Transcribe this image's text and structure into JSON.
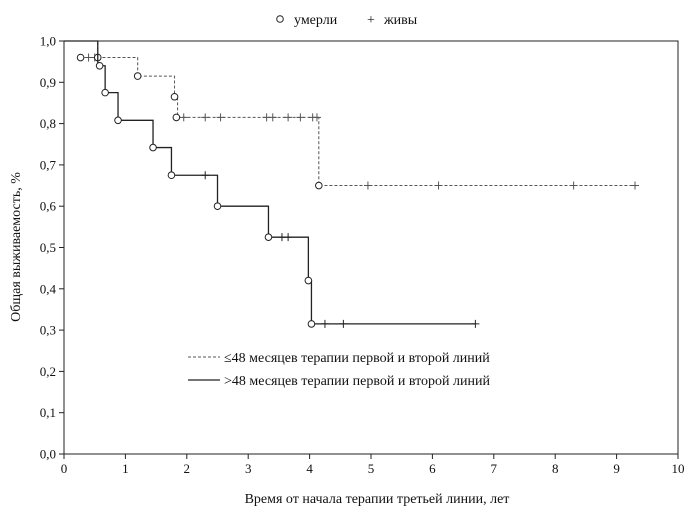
{
  "chart_data": {
    "type": "line",
    "xlabel": "Время от начала терапии третьей линии, лет",
    "ylabel": "Общая выживаемость, %",
    "xlim": [
      0,
      10
    ],
    "ylim": [
      0,
      1
    ],
    "x_ticks": [
      "0",
      "1",
      "2",
      "3",
      "4",
      "5",
      "6",
      "7",
      "8",
      "9",
      "10"
    ],
    "y_ticks": [
      "0,0",
      "0,1",
      "0,2",
      "0,3",
      "0,4",
      "0,5",
      "0,6",
      "0,7",
      "0,8",
      "0,9",
      "1,0"
    ],
    "grid": false,
    "marker_legend": {
      "died_label": "умерли",
      "alive_label": "живы",
      "died_symbol": "○",
      "alive_symbol": "+"
    },
    "series": [
      {
        "name": "≤48 месяцев терапии первой и второй линий",
        "style": "dashed",
        "color": "#555555",
        "steps": [
          [
            0,
            1.0
          ],
          [
            0.55,
            0.96
          ],
          [
            1.2,
            0.915
          ],
          [
            1.8,
            0.865
          ],
          [
            1.85,
            0.815
          ],
          [
            4.15,
            0.65
          ],
          [
            9.3,
            0.65
          ]
        ],
        "died": [
          [
            0.27,
            0.96
          ],
          [
            0.55,
            0.96
          ],
          [
            1.2,
            0.915
          ],
          [
            1.8,
            0.865
          ],
          [
            1.83,
            0.815
          ],
          [
            4.15,
            0.65
          ]
        ],
        "censored": [
          [
            0.4,
            0.96
          ],
          [
            0.5,
            0.96
          ],
          [
            1.95,
            0.815
          ],
          [
            2.3,
            0.815
          ],
          [
            2.55,
            0.815
          ],
          [
            3.3,
            0.815
          ],
          [
            3.4,
            0.815
          ],
          [
            3.65,
            0.815
          ],
          [
            3.85,
            0.815
          ],
          [
            4.05,
            0.815
          ],
          [
            4.12,
            0.815
          ],
          [
            4.95,
            0.65
          ],
          [
            6.1,
            0.65
          ],
          [
            8.3,
            0.65
          ],
          [
            9.3,
            0.65
          ]
        ]
      },
      {
        "name": ">48 месяцев терапии первой и второй линий",
        "style": "solid",
        "color": "#222222",
        "steps": [
          [
            0,
            1.0
          ],
          [
            0.55,
            0.94
          ],
          [
            0.67,
            0.875
          ],
          [
            0.88,
            0.808
          ],
          [
            1.45,
            0.742
          ],
          [
            1.75,
            0.675
          ],
          [
            2.5,
            0.6
          ],
          [
            3.33,
            0.525
          ],
          [
            3.98,
            0.42
          ],
          [
            4.03,
            0.315
          ],
          [
            6.7,
            0.315
          ]
        ],
        "died": [
          [
            0.58,
            0.94
          ],
          [
            0.67,
            0.875
          ],
          [
            0.88,
            0.808
          ],
          [
            1.45,
            0.742
          ],
          [
            1.75,
            0.675
          ],
          [
            2.5,
            0.6
          ],
          [
            3.33,
            0.525
          ],
          [
            3.98,
            0.42
          ],
          [
            4.03,
            0.315
          ]
        ],
        "censored": [
          [
            2.3,
            0.675
          ],
          [
            3.55,
            0.525
          ],
          [
            3.65,
            0.525
          ],
          [
            4.25,
            0.315
          ],
          [
            4.55,
            0.315
          ],
          [
            6.7,
            0.315
          ]
        ]
      }
    ]
  }
}
